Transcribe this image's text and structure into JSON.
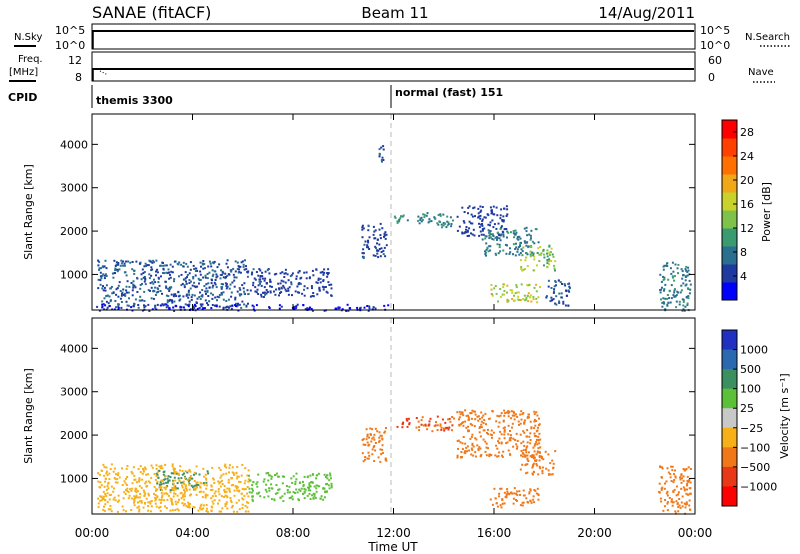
{
  "header": {
    "station": "SANAE (fitACF)",
    "beam": "Beam 11",
    "date": "14/Aug/2011"
  },
  "top_panels": {
    "left_labels": [
      "N.Sky",
      "Freq.",
      "[MHz]",
      "CPID"
    ],
    "right_labels": [
      "N.Search",
      "Nave"
    ],
    "noise_ticks_left": [
      "10^5",
      "10^0"
    ],
    "noise_ticks_right": [
      "10^5",
      "10^0"
    ],
    "freq_ticks_left": [
      "12",
      "8"
    ],
    "nave_ticks_right": [
      "60",
      "0"
    ],
    "cpid_segments": [
      {
        "label": "themis 3300",
        "start_hour": 0.05
      },
      {
        "label": "normal (fast) 151",
        "start_hour": 12.0
      }
    ]
  },
  "time_axis": {
    "label": "Time UT",
    "ticks": [
      "00:00",
      "04:00",
      "08:00",
      "12:00",
      "16:00",
      "20:00",
      "00:00"
    ],
    "range_hours": [
      0,
      24
    ]
  },
  "colors": {
    "power": [
      "#0000ff",
      "#1e3aa0",
      "#2a6e90",
      "#3a9a70",
      "#7ec24a",
      "#c8d22a",
      "#f0a818",
      "#ff7000",
      "#ff4000",
      "#ff0000"
    ],
    "velocity": [
      "#2030c0",
      "#2a68b0",
      "#3c9060",
      "#5cc038",
      "#c8c8c8",
      "#f8b018",
      "#f07818",
      "#e83818",
      "#ff0000"
    ]
  },
  "chart_data": [
    {
      "type": "heatmap",
      "title": "",
      "xlabel": "Time UT",
      "ylabel": "Slant Range [km]",
      "xlim": [
        0,
        24
      ],
      "ylim": [
        180,
        4700
      ],
      "yticks": [
        "1000",
        "2000",
        "3000",
        "4000"
      ],
      "colorbar": {
        "label": "Power [dB]",
        "ticks": [
          "4",
          "8",
          "12",
          "16",
          "20",
          "24",
          "28"
        ],
        "range": [
          0,
          30
        ]
      },
      "regions": [
        {
          "t0": 0.2,
          "t1": 6.2,
          "r0": 250,
          "r1": 1350,
          "value": 6
        },
        {
          "t0": 6.2,
          "t1": 9.5,
          "r0": 500,
          "r1": 1150,
          "value": 5
        },
        {
          "t0": 0.1,
          "t1": 11.8,
          "r0": 180,
          "r1": 330,
          "value": 3
        },
        {
          "t0": 10.7,
          "t1": 11.7,
          "r0": 1400,
          "r1": 2200,
          "value": 5
        },
        {
          "t0": 11.4,
          "t1": 11.6,
          "r0": 3600,
          "r1": 4050,
          "value": 6
        },
        {
          "t0": 12.0,
          "t1": 12.6,
          "r0": 2200,
          "r1": 2400,
          "value": 10
        },
        {
          "t0": 12.8,
          "t1": 14.4,
          "r0": 2100,
          "r1": 2450,
          "value": 9
        },
        {
          "t0": 14.5,
          "t1": 16.5,
          "r0": 1900,
          "r1": 2600,
          "value": 4
        },
        {
          "t0": 15.5,
          "t1": 17.8,
          "r0": 1450,
          "r1": 2100,
          "value": 8
        },
        {
          "t0": 17.0,
          "t1": 18.4,
          "r0": 1100,
          "r1": 1700,
          "value": 14
        },
        {
          "t0": 15.8,
          "t1": 17.8,
          "r0": 380,
          "r1": 800,
          "value": 16
        },
        {
          "t0": 18.0,
          "t1": 19.0,
          "r0": 300,
          "r1": 900,
          "value": 6
        },
        {
          "t0": 22.5,
          "t1": 23.8,
          "r0": 180,
          "r1": 1300,
          "value": 8
        }
      ]
    },
    {
      "type": "heatmap",
      "title": "",
      "xlabel": "Time UT",
      "ylabel": "Slant Range [km]",
      "xlim": [
        0,
        24
      ],
      "ylim": [
        180,
        4700
      ],
      "yticks": [
        "1000",
        "2000",
        "3000",
        "4000"
      ],
      "colorbar": {
        "label": "Velocity [m s⁻¹]",
        "ticks": [
          "1000",
          "500",
          "100",
          "25",
          "−25",
          "−100",
          "−500",
          "−1000"
        ]
      },
      "regions": [
        {
          "t0": 2.5,
          "t1": 4.6,
          "r0": 750,
          "r1": 1200,
          "value": 300
        },
        {
          "t0": 0.2,
          "t1": 6.2,
          "r0": 250,
          "r1": 1350,
          "value": -80
        },
        {
          "t0": 6.2,
          "t1": 9.5,
          "r0": 500,
          "r1": 1150,
          "value": 60
        },
        {
          "t0": 10.7,
          "t1": 11.7,
          "r0": 1400,
          "r1": 2200,
          "value": -150
        },
        {
          "t0": 12.0,
          "t1": 12.6,
          "r0": 2200,
          "r1": 2400,
          "value": -600
        },
        {
          "t0": 12.8,
          "t1": 14.4,
          "r0": 2100,
          "r1": 2450,
          "value": -500
        },
        {
          "t0": 14.5,
          "t1": 17.8,
          "r0": 1500,
          "r1": 2600,
          "value": -400
        },
        {
          "t0": 17.0,
          "t1": 18.4,
          "r0": 1100,
          "r1": 1700,
          "value": -350
        },
        {
          "t0": 15.8,
          "t1": 17.8,
          "r0": 350,
          "r1": 800,
          "value": -150
        },
        {
          "t0": 22.5,
          "t1": 23.8,
          "r0": 180,
          "r1": 1300,
          "value": -200
        }
      ]
    }
  ]
}
